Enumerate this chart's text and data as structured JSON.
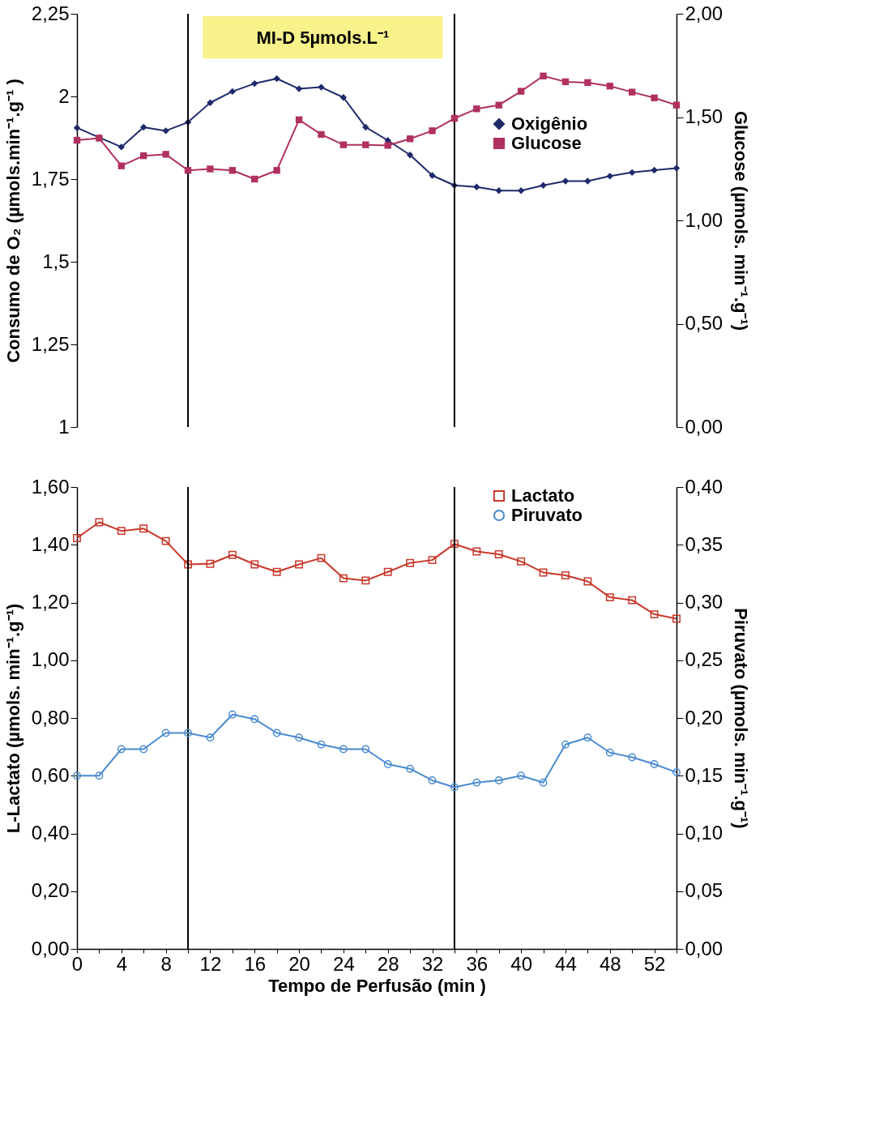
{
  "chart_data": [
    {
      "type": "line",
      "ylabel": "Consumo de O₂ (µmols.min⁻¹.g⁻¹ )",
      "y2label": "Glucose (µmols. min⁻¹.g⁻¹)",
      "x": [
        0,
        2,
        4,
        6,
        8,
        10,
        12,
        14,
        16,
        18,
        20,
        22,
        24,
        26,
        28,
        30,
        32,
        34,
        36,
        38,
        40,
        42,
        44,
        46,
        48,
        50,
        52,
        54
      ],
      "xlim": [
        0,
        54
      ],
      "tick_labels": "y",
      "ylim": [
        1,
        2.25
      ],
      "yticks": [
        {
          "value": 1,
          "label": "1"
        },
        {
          "value": 1.25,
          "label": "1,25"
        },
        {
          "value": 1.5,
          "label": "1,5"
        },
        {
          "value": 1.75,
          "label": "1,75"
        },
        {
          "value": 2,
          "label": "2"
        },
        {
          "value": 2.25,
          "label": "2,25"
        }
      ],
      "y2lim": [
        0,
        2
      ],
      "y2ticks": [
        {
          "value": 0,
          "label": "0,00"
        },
        {
          "value": 0.5,
          "label": "0,50"
        },
        {
          "value": 1,
          "label": "1,00"
        },
        {
          "value": 1.5,
          "label": "1,50"
        },
        {
          "value": 2,
          "label": "2,00"
        }
      ],
      "series": [
        {
          "name": "Oxigênio",
          "color": "#1f2a6b",
          "marker": "diamond",
          "values": [
            1.905,
            1.876,
            1.847,
            1.907,
            1.896,
            1.922,
            1.981,
            2.015,
            2.039,
            2.054,
            2.023,
            2.028,
            1.997,
            1.907,
            1.867,
            1.823,
            1.761,
            1.731,
            1.726,
            1.715,
            1.715,
            1.731,
            1.744,
            1.744,
            1.759,
            1.77,
            1.777,
            1.783
          ]
        },
        {
          "name": "Glucose",
          "color": "#b03060",
          "marker": "square",
          "axis": "y2",
          "values": [
            1.388,
            1.398,
            1.264,
            1.313,
            1.32,
            1.242,
            1.249,
            1.242,
            1.2,
            1.242,
            1.487,
            1.416,
            1.366,
            1.366,
            1.363,
            1.395,
            1.434,
            1.494,
            1.54,
            1.558,
            1.625,
            1.699,
            1.671,
            1.667,
            1.65,
            1.621,
            1.593,
            1.558
          ]
        }
      ],
      "ref_lines": [
        {
          "axis": "x",
          "value": 10,
          "color": "#000000"
        },
        {
          "axis": "x",
          "value": 34,
          "color": "#000000"
        }
      ],
      "annotations": [
        "MI-D 5µmols.L⁻¹"
      ],
      "legend": "top right",
      "grid": false
    },
    {
      "type": "line",
      "xlabel": "Tempo de Perfusão (min )",
      "ylabel": "L-Lactato (µmols. min⁻¹.g⁻¹)",
      "y2label": "Piruvato (µmols. min⁻¹.g⁻¹)",
      "x": [
        0,
        2,
        4,
        6,
        8,
        10,
        12,
        14,
        16,
        18,
        20,
        22,
        24,
        26,
        28,
        30,
        32,
        34,
        36,
        38,
        40,
        42,
        44,
        46,
        48,
        50,
        52,
        54
      ],
      "xlim": [
        0,
        54
      ],
      "xticks": [
        0,
        {
          "value": 2,
          "label": null
        },
        4,
        {
          "value": 6,
          "label": null
        },
        8,
        {
          "value": 10,
          "label": null
        },
        12,
        {
          "value": 14,
          "label": null
        },
        16,
        {
          "value": 18,
          "label": null
        },
        20,
        {
          "value": 22,
          "label": null
        },
        24,
        {
          "value": 26,
          "label": null
        },
        28,
        {
          "value": 30,
          "label": null
        },
        32,
        {
          "value": 34,
          "label": null
        },
        36,
        {
          "value": 38,
          "label": null
        },
        40,
        {
          "value": 42,
          "label": null
        },
        44,
        {
          "value": 46,
          "label": null
        },
        48,
        {
          "value": 50,
          "label": null
        },
        52,
        {
          "value": 54,
          "label": null
        }
      ],
      "ylim": [
        0,
        1.6
      ],
      "yticks": [
        {
          "value": 0,
          "label": "0,00"
        },
        {
          "value": 0.2,
          "label": "0,20"
        },
        {
          "value": 0.4,
          "label": "0,40"
        },
        {
          "value": 0.6,
          "label": "0,60"
        },
        {
          "value": 0.8,
          "label": "0,80"
        },
        {
          "value": 1.0,
          "label": "1,00"
        },
        {
          "value": 1.2,
          "label": "1,20"
        },
        {
          "value": 1.4,
          "label": "1,40"
        },
        {
          "value": 1.6,
          "label": "1,60"
        }
      ],
      "y2lim": [
        0,
        0.4
      ],
      "y2ticks": [
        {
          "value": 0,
          "label": "0,00"
        },
        {
          "value": 0.05,
          "label": "0,05"
        },
        {
          "value": 0.1,
          "label": "0,10"
        },
        {
          "value": 0.15,
          "label": "0,15"
        },
        {
          "value": 0.2,
          "label": "0,20"
        },
        {
          "value": 0.25,
          "label": "0,25"
        },
        {
          "value": 0.3,
          "label": "0,30"
        },
        {
          "value": 0.35,
          "label": "0,35"
        },
        {
          "value": 0.4,
          "label": "0,40"
        }
      ],
      "series": [
        {
          "name": "Lactato",
          "color": "#c8382a",
          "marker": "square",
          "values": [
            1.423,
            1.478,
            1.448,
            1.456,
            1.413,
            1.332,
            1.334,
            1.365,
            1.332,
            1.306,
            1.332,
            1.354,
            1.284,
            1.276,
            1.306,
            1.337,
            1.347,
            1.403,
            1.377,
            1.367,
            1.342,
            1.304,
            1.294,
            1.273,
            1.218,
            1.208,
            1.159,
            1.144
          ]
        },
        {
          "name": "Piruvato",
          "color": "#4a8bd0",
          "marker": "circle",
          "axis": "y2",
          "values": [
            0.15,
            0.15,
            0.173,
            0.173,
            0.187,
            0.187,
            0.183,
            0.203,
            0.199,
            0.187,
            0.183,
            0.177,
            0.173,
            0.173,
            0.16,
            0.156,
            0.146,
            0.14,
            0.144,
            0.146,
            0.15,
            0.144,
            0.177,
            0.183,
            0.17,
            0.166,
            0.16,
            0.153
          ]
        }
      ],
      "ref_lines": [
        {
          "axis": "x",
          "value": 10,
          "color": "#000000"
        },
        {
          "axis": "x",
          "value": 34,
          "color": "#000000"
        }
      ],
      "legend": "top right",
      "grid": false
    }
  ]
}
